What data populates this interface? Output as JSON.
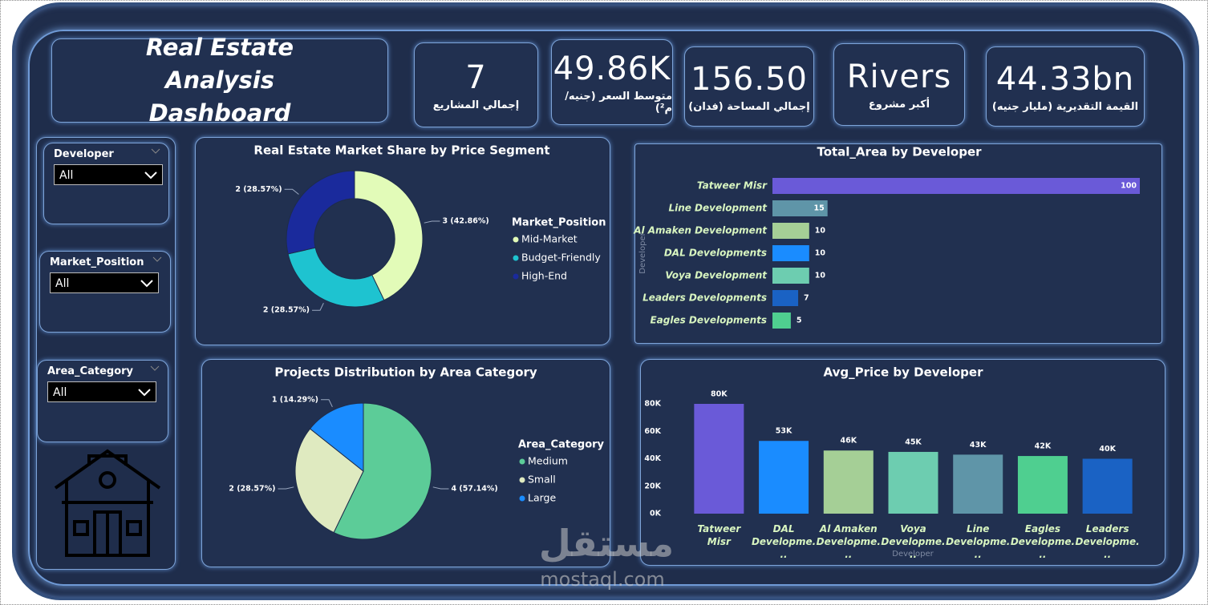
{
  "header": {
    "title": "Real Estate Analysis Dashboard"
  },
  "kpis": [
    {
      "value": "7",
      "label": "إجمالي المشاريع"
    },
    {
      "value": "49.86K",
      "label": "متوسط السعر (جنيه/م²)"
    },
    {
      "value": "156.50",
      "label": "إجمالي المساحة (فدان)"
    },
    {
      "value": "Rivers",
      "label": "أكبر مشروع"
    },
    {
      "value": "44.33bn",
      "label": "القيمة التقديرية (مليار جنيه)"
    }
  ],
  "slicers": [
    {
      "title": "Developer",
      "selected": "All"
    },
    {
      "title": "Market_Position",
      "selected": "All"
    },
    {
      "title": "Area_Category",
      "selected": "All"
    }
  ],
  "watermark": {
    "logo": "مستقل",
    "url": "mostaql.com"
  },
  "chart_data": [
    {
      "type": "donut",
      "title": "Real Estate Market Share by Price Segment",
      "legend_title": "Market_Position",
      "categories": [
        "Mid-Market",
        "Budget-Friendly",
        "High-End"
      ],
      "values": [
        3,
        2,
        2
      ],
      "value_labels": [
        "3 (42.86%)",
        "2 (28.57%)",
        "2 (28.57%)"
      ],
      "colors": [
        "#e2fbb8",
        "#1ec3d0",
        "#1a2a9c"
      ]
    },
    {
      "type": "pie",
      "title": "Projects Distribution by Area Category",
      "legend_title": "Area_Category",
      "categories": [
        "Medium",
        "Small",
        "Large"
      ],
      "values": [
        4,
        2,
        1
      ],
      "value_labels": [
        "4 (57.14%)",
        "2 (28.57%)",
        "1 (14.29%)"
      ],
      "colors": [
        "#5ccc98",
        "#dfeac0",
        "#1a8cff"
      ]
    },
    {
      "type": "bar",
      "orientation": "horizontal",
      "title": "Total_Area by Developer",
      "y_label": "Developer",
      "categories": [
        "Tatweer Misr",
        "Line Development",
        "Al Amaken Development",
        "DAL Developments",
        "Voya Development",
        "Leaders Developments",
        "Eagles Developments"
      ],
      "values": [
        100,
        15,
        10,
        10,
        10,
        7,
        5
      ],
      "xlim": [
        0,
        100
      ],
      "colors": [
        "#6a5ad8",
        "#5f95a8",
        "#a5cf96",
        "#1a8cff",
        "#6dcdb0",
        "#1a62c4",
        "#4fcf90"
      ]
    },
    {
      "type": "bar",
      "orientation": "vertical",
      "title": "Avg_Price by Developer",
      "x_label": "Developer",
      "categories": [
        "Tatweer Misr",
        "DAL Developme...",
        "Al Amaken Developme...",
        "Voya Developme...",
        "Line Developme...",
        "Eagles Developme...",
        "Leaders Developme..."
      ],
      "values": [
        80000,
        53000,
        46000,
        45000,
        43000,
        42000,
        40000
      ],
      "value_labels": [
        "80K",
        "53K",
        "46K",
        "45K",
        "43K",
        "42K",
        "40K"
      ],
      "ylim": [
        0,
        80000
      ],
      "yticks": [
        {
          "value": 0,
          "label": "0K"
        },
        {
          "value": 20000,
          "label": "20K"
        },
        {
          "value": 40000,
          "label": "40K"
        },
        {
          "value": 60000,
          "label": "60K"
        },
        {
          "value": 80000,
          "label": "80K"
        }
      ],
      "colors": [
        "#6a5ad8",
        "#1a8cff",
        "#a5cf96",
        "#6dcdb0",
        "#5f95a8",
        "#4fcf90",
        "#1a62c4"
      ]
    }
  ]
}
